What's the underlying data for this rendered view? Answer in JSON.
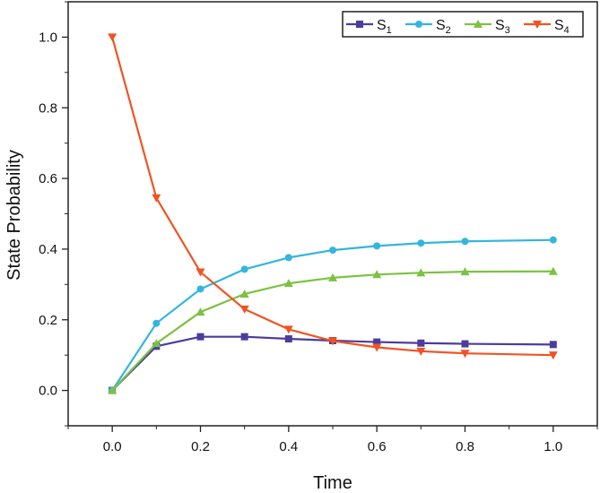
{
  "chart_data": {
    "type": "line",
    "title": "",
    "xlabel": "Time",
    "ylabel": "State Probability",
    "xlim": [
      -0.1,
      1.1
    ],
    "ylim": [
      -0.1,
      1.1
    ],
    "xticks": [
      0.0,
      0.2,
      0.4,
      0.6,
      0.8,
      1.0
    ],
    "xtick_labels": [
      "0.0",
      "0.2",
      "0.4",
      "0.6",
      "0.8",
      "1.0"
    ],
    "yticks": [
      0.0,
      0.2,
      0.4,
      0.6,
      0.8,
      1.0
    ],
    "ytick_labels": [
      "0.0",
      "0.2",
      "0.4",
      "0.6",
      "0.8",
      "1.0"
    ],
    "legend_position": "top-right",
    "x": [
      0.0,
      0.1,
      0.2,
      0.3,
      0.4,
      0.5,
      0.6,
      0.7,
      0.8,
      1.0
    ],
    "series": [
      {
        "name": "S",
        "sub": "1",
        "color": "#4b3c9e",
        "marker": "square",
        "values": [
          0.0,
          0.125,
          0.152,
          0.152,
          0.146,
          0.141,
          0.137,
          0.134,
          0.132,
          0.13
        ]
      },
      {
        "name": "S",
        "sub": "2",
        "color": "#33b5e0",
        "marker": "circle",
        "values": [
          0.0,
          0.19,
          0.287,
          0.343,
          0.376,
          0.397,
          0.409,
          0.417,
          0.422,
          0.426
        ]
      },
      {
        "name": "S",
        "sub": "3",
        "color": "#7cc242",
        "marker": "triangle-up",
        "values": [
          0.0,
          0.133,
          0.222,
          0.273,
          0.303,
          0.319,
          0.328,
          0.333,
          0.336,
          0.337
        ]
      },
      {
        "name": "S",
        "sub": "4",
        "color": "#ef5423",
        "marker": "triangle-down",
        "values": [
          1.0,
          0.545,
          0.335,
          0.23,
          0.173,
          0.14,
          0.122,
          0.111,
          0.105,
          0.1
        ]
      }
    ]
  }
}
